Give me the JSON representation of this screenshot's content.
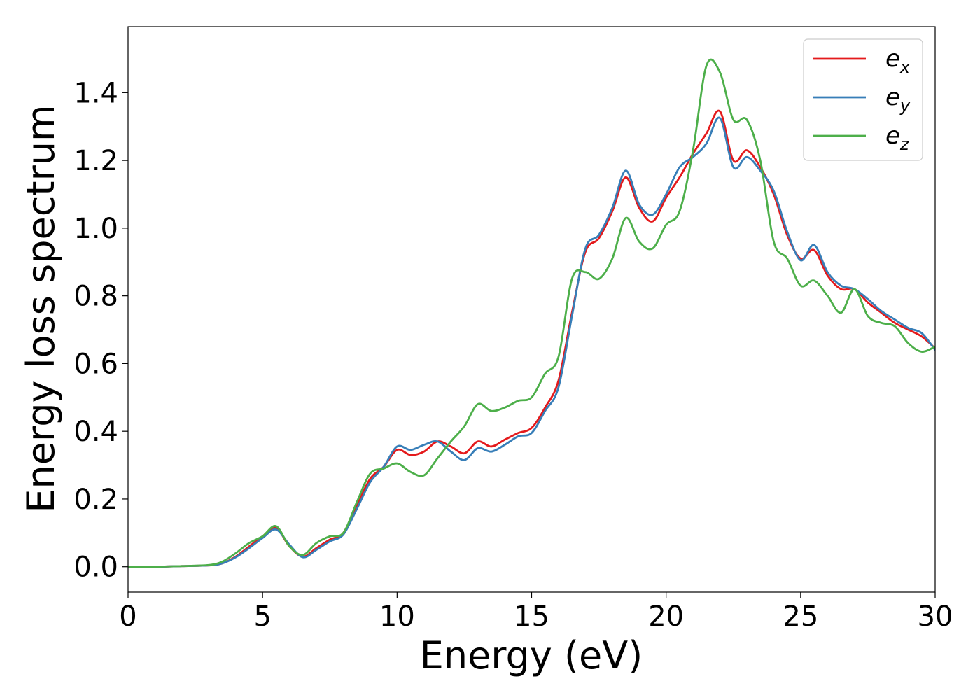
{
  "chart_data": {
    "type": "line",
    "xlabel": "Energy (eV)",
    "ylabel": "Energy loss spectrum",
    "xlim": [
      0,
      30
    ],
    "ylim": [
      -0.075,
      1.595
    ],
    "xticks": [
      0,
      5,
      10,
      15,
      20,
      25,
      30
    ],
    "xtick_labels": [
      "0",
      "5",
      "10",
      "15",
      "20",
      "25",
      "30"
    ],
    "yticks": [
      0.0,
      0.2,
      0.4,
      0.6,
      0.8,
      1.0,
      1.2,
      1.4
    ],
    "ytick_labels": [
      "0.0",
      "0.2",
      "0.4",
      "0.6",
      "0.8",
      "1.0",
      "1.2",
      "1.4"
    ],
    "grid": false,
    "legend_position": "top-right",
    "series": [
      {
        "name": "e_x",
        "label_main": "e",
        "label_sub": "x",
        "color": "#e41a1c",
        "x": [
          0,
          1,
          2,
          3,
          3.5,
          4,
          4.5,
          5,
          5.5,
          6,
          6.5,
          7,
          7.5,
          8,
          8.5,
          9,
          9.5,
          10,
          10.5,
          11,
          11.5,
          12,
          12.5,
          13,
          13.5,
          14,
          14.5,
          15,
          15.5,
          16,
          16.5,
          17,
          17.5,
          18,
          18.5,
          19,
          19.5,
          20,
          20.5,
          21,
          21.5,
          22,
          22.5,
          23,
          23.5,
          24,
          24.5,
          25,
          25.5,
          26,
          26.5,
          27,
          27.5,
          28,
          28.5,
          29,
          29.5,
          30
        ],
        "y": [
          0,
          0,
          0.002,
          0.004,
          0.01,
          0.03,
          0.06,
          0.09,
          0.115,
          0.06,
          0.03,
          0.055,
          0.08,
          0.1,
          0.18,
          0.26,
          0.295,
          0.345,
          0.33,
          0.34,
          0.37,
          0.355,
          0.335,
          0.37,
          0.355,
          0.375,
          0.395,
          0.41,
          0.47,
          0.55,
          0.75,
          0.93,
          0.97,
          1.05,
          1.15,
          1.06,
          1.02,
          1.09,
          1.15,
          1.22,
          1.28,
          1.345,
          1.2,
          1.23,
          1.18,
          1.1,
          0.98,
          0.91,
          0.935,
          0.86,
          0.82,
          0.82,
          0.78,
          0.75,
          0.72,
          0.7,
          0.68,
          0.645
        ]
      },
      {
        "name": "e_y",
        "label_main": "e",
        "label_sub": "y",
        "color": "#377eb8",
        "x": [
          0,
          1,
          2,
          3,
          3.5,
          4,
          4.5,
          5,
          5.5,
          6,
          6.5,
          7,
          7.5,
          8,
          8.5,
          9,
          9.5,
          10,
          10.5,
          11,
          11.5,
          12,
          12.5,
          13,
          13.5,
          14,
          14.5,
          15,
          15.5,
          16,
          16.5,
          17,
          17.5,
          18,
          18.5,
          19,
          19.5,
          20,
          20.5,
          21,
          21.5,
          22,
          22.5,
          23,
          23.5,
          24,
          24.5,
          25,
          25.5,
          26,
          26.5,
          27,
          27.5,
          28,
          28.5,
          29,
          29.5,
          30
        ],
        "y": [
          0,
          0,
          0.002,
          0.004,
          0.01,
          0.028,
          0.055,
          0.085,
          0.11,
          0.065,
          0.028,
          0.05,
          0.075,
          0.095,
          0.17,
          0.25,
          0.295,
          0.355,
          0.345,
          0.36,
          0.37,
          0.34,
          0.315,
          0.35,
          0.34,
          0.36,
          0.385,
          0.395,
          0.46,
          0.53,
          0.74,
          0.94,
          0.98,
          1.06,
          1.17,
          1.07,
          1.04,
          1.1,
          1.18,
          1.21,
          1.25,
          1.325,
          1.18,
          1.21,
          1.17,
          1.11,
          0.99,
          0.905,
          0.95,
          0.87,
          0.83,
          0.82,
          0.79,
          0.755,
          0.73,
          0.705,
          0.69,
          0.64
        ]
      },
      {
        "name": "e_z",
        "label_main": "e",
        "label_sub": "z",
        "color": "#4daf4a",
        "x": [
          0,
          1,
          2,
          3,
          3.5,
          4,
          4.5,
          5,
          5.5,
          6,
          6.5,
          7,
          7.5,
          8,
          8.5,
          9,
          9.5,
          10,
          10.5,
          11,
          11.5,
          12,
          12.5,
          13,
          13.5,
          14,
          14.5,
          15,
          15.5,
          16,
          16.5,
          17,
          17.5,
          18,
          18.5,
          19,
          19.5,
          20,
          20.5,
          21,
          21.5,
          22,
          22.5,
          23,
          23.5,
          24,
          24.5,
          25,
          25.5,
          26,
          26.5,
          27,
          27.5,
          28,
          28.5,
          29,
          29.5,
          30
        ],
        "y": [
          0,
          0,
          0.002,
          0.005,
          0.015,
          0.04,
          0.07,
          0.09,
          0.12,
          0.06,
          0.035,
          0.07,
          0.09,
          0.1,
          0.19,
          0.275,
          0.29,
          0.305,
          0.28,
          0.27,
          0.32,
          0.37,
          0.415,
          0.48,
          0.46,
          0.47,
          0.49,
          0.5,
          0.57,
          0.62,
          0.85,
          0.87,
          0.85,
          0.91,
          1.03,
          0.96,
          0.94,
          1.01,
          1.05,
          1.23,
          1.48,
          1.46,
          1.32,
          1.32,
          1.2,
          0.96,
          0.91,
          0.83,
          0.845,
          0.8,
          0.75,
          0.82,
          0.74,
          0.72,
          0.71,
          0.66,
          0.635,
          0.65
        ]
      }
    ]
  }
}
